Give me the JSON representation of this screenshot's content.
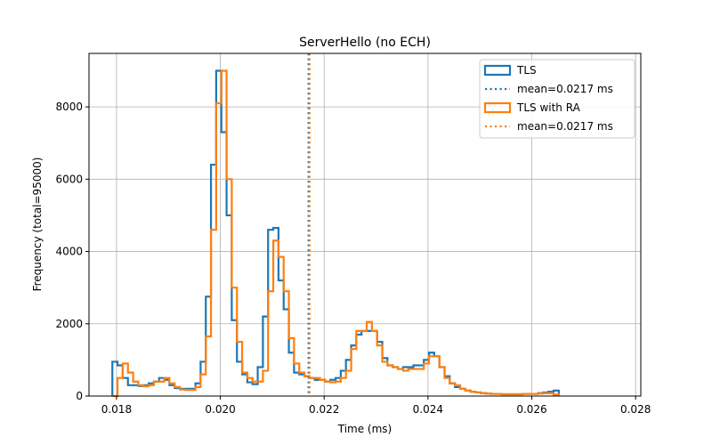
{
  "chart_data": {
    "type": "histogram-step",
    "title": "ServerHello (no ECH)",
    "xlabel": "Time (ms)",
    "ylabel": "Frequency (total=95000)",
    "xlim": [
      0.01747,
      0.0281
    ],
    "ylim": [
      0,
      9480
    ],
    "grid": true,
    "legend_position": "top-right",
    "xticks": [
      0.018,
      0.02,
      0.022,
      0.024,
      0.026,
      0.028
    ],
    "xtick_labels": [
      "0.018",
      "0.020",
      "0.022",
      "0.024",
      "0.026",
      "0.028"
    ],
    "yticks": [
      0,
      2000,
      4000,
      6000,
      8000
    ],
    "ytick_labels": [
      "0",
      "2000",
      "4000",
      "6000",
      "8000"
    ],
    "series": [
      {
        "name": "TLS",
        "color": "#1f77b4",
        "bin_start": 0.01792,
        "bin_width": 0.0001,
        "counts": [
          950,
          850,
          500,
          300,
          300,
          280,
          300,
          350,
          400,
          500,
          450,
          300,
          220,
          200,
          200,
          200,
          350,
          950,
          2750,
          6400,
          9000,
          7300,
          5000,
          2100,
          950,
          600,
          380,
          330,
          800,
          2200,
          4600,
          4650,
          3200,
          2400,
          1200,
          650,
          600,
          550,
          500,
          450,
          450,
          400,
          450,
          500,
          700,
          1000,
          1400,
          1700,
          1800,
          1800,
          1800,
          1500,
          1050,
          850,
          800,
          750,
          800,
          800,
          850,
          850,
          1000,
          1200,
          1100,
          800,
          550,
          350,
          250,
          200,
          150,
          120,
          100,
          80,
          70,
          60,
          60,
          50,
          50,
          50,
          50,
          60,
          60,
          60,
          80,
          100,
          120,
          150
        ],
        "mean": 0.0217,
        "mean_label": "mean=0.0217 ms"
      },
      {
        "name": "TLS with RA",
        "color": "#ff7f0e",
        "bin_start": 0.01792,
        "bin_width": 0.0001,
        "counts": [
          0,
          500,
          900,
          650,
          400,
          300,
          270,
          300,
          400,
          400,
          500,
          350,
          250,
          180,
          170,
          170,
          250,
          600,
          1650,
          4600,
          8100,
          9000,
          6000,
          3000,
          1500,
          650,
          500,
          400,
          400,
          700,
          2900,
          4300,
          3850,
          2900,
          1600,
          900,
          650,
          550,
          500,
          500,
          450,
          400,
          380,
          400,
          500,
          700,
          1300,
          1800,
          1800,
          2050,
          1800,
          1400,
          950,
          850,
          800,
          750,
          700,
          750,
          750,
          750,
          900,
          1100,
          1100,
          800,
          500,
          350,
          300,
          200,
          150,
          120,
          100,
          80,
          70,
          60,
          60,
          50,
          50,
          50,
          50,
          60,
          60,
          60,
          70,
          80,
          80,
          40
        ],
        "mean": 0.02172,
        "mean_label": "mean=0.0217 ms"
      }
    ]
  }
}
